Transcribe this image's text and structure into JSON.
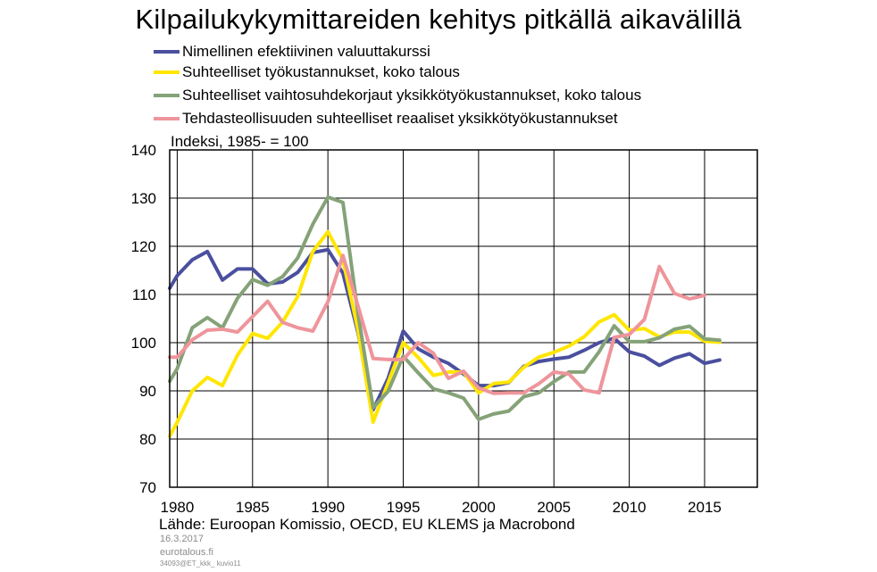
{
  "chart_data": {
    "type": "line",
    "title": "Kilpailukykymittareiden kehitys pitkällä aikavälillä",
    "ylabel": "Indeksi, 1985- = 100",
    "xlabel": "",
    "ylim": [
      70,
      140
    ],
    "xlim": [
      1979.5,
      2018.5
    ],
    "y_ticks": [
      70,
      80,
      90,
      100,
      110,
      120,
      130,
      140
    ],
    "x_ticks": [
      1980,
      1985,
      1990,
      1995,
      2000,
      2005,
      2010,
      2015
    ],
    "grid": true,
    "legend_position": "top-left",
    "series": [
      {
        "name": "Nimellinen efektiivinen valuuttakurssi",
        "color": "#4a4f9e",
        "x": [
          1979.5,
          1980,
          1981,
          1982,
          1983,
          1984,
          1985,
          1986,
          1987,
          1988,
          1989,
          1990,
          1991,
          1992,
          1993,
          1994,
          1995,
          1996,
          1997,
          1998,
          1999,
          2000,
          2001,
          2002,
          2003,
          2004,
          2005,
          2006,
          2007,
          2008,
          2009,
          2010,
          2011,
          2012,
          2013,
          2014,
          2015,
          2016
        ],
        "values": [
          111.3,
          113.9,
          117.2,
          118.9,
          113.0,
          115.3,
          115.3,
          112.2,
          112.6,
          114.6,
          118.7,
          119.3,
          114.4,
          102.1,
          86.1,
          92.6,
          102.4,
          98.7,
          97.0,
          95.7,
          93.5,
          91.1,
          91.1,
          91.7,
          95.1,
          96.1,
          96.6,
          97.0,
          98.4,
          100.0,
          100.9,
          98.1,
          97.2,
          95.3,
          96.8,
          97.7,
          95.7,
          96.4
        ]
      },
      {
        "name": "Suhteelliset työkustannukset, koko talous",
        "color": "#ffe600",
        "x": [
          1979.5,
          1980,
          1981,
          1982,
          1983,
          1984,
          1985,
          1986,
          1987,
          1988,
          1989,
          1990,
          1991,
          1992,
          1993,
          1994,
          1995,
          1996,
          1997,
          1998,
          1999,
          2000,
          2001,
          2002,
          2003,
          2004,
          2005,
          2006,
          2007,
          2008,
          2009,
          2010,
          2011,
          2012,
          2013,
          2014,
          2015,
          2016
        ],
        "values": [
          80.6,
          83.5,
          90.0,
          92.8,
          91.1,
          97.4,
          101.9,
          100.9,
          104.3,
          109.6,
          118.9,
          123.0,
          117.2,
          102.6,
          83.5,
          91.7,
          100.0,
          96.9,
          93.2,
          93.9,
          93.9,
          89.6,
          91.5,
          91.8,
          94.9,
          97.0,
          98.0,
          99.3,
          101.2,
          104.3,
          105.8,
          102.6,
          102.9,
          101.2,
          102.2,
          102.2,
          100.3,
          100.1
        ]
      },
      {
        "name": "Suhteelliset vaihtosuhdekorjaut yksikkötyökustannukset, koko talous",
        "color": "#85a278",
        "x": [
          1979.5,
          1980,
          1981,
          1982,
          1983,
          1984,
          1985,
          1986,
          1987,
          1988,
          1989,
          1990,
          1991,
          1992,
          1993,
          1994,
          1995,
          1996,
          1997,
          1998,
          1999,
          2000,
          2001,
          2002,
          2003,
          2004,
          2005,
          2006,
          2007,
          2008,
          2009,
          2010,
          2011,
          2012,
          2013,
          2014,
          2015,
          2016
        ],
        "values": [
          92.0,
          94.6,
          103.1,
          105.2,
          103.1,
          109.2,
          113.1,
          111.9,
          113.7,
          117.6,
          124.6,
          130.2,
          129.1,
          106.0,
          86.5,
          89.9,
          97.2,
          93.7,
          90.4,
          89.6,
          88.5,
          84.1,
          85.2,
          85.8,
          88.8,
          89.6,
          91.9,
          93.9,
          93.9,
          98.1,
          103.5,
          100.2,
          100.2,
          101.0,
          102.8,
          103.4,
          100.8,
          100.5
        ]
      },
      {
        "name": "Tehdasteollisuuden suhteelliset reaaliset yksikkötyökustannukset",
        "color": "#ee959b",
        "x": [
          1979.5,
          1980,
          1981,
          1982,
          1983,
          1984,
          1985,
          1986,
          1987,
          1988,
          1989,
          1990,
          1991,
          1992,
          1993,
          1994,
          1995,
          1996,
          1997,
          1998,
          1999,
          2000,
          2001,
          2002,
          2003,
          2004,
          2005,
          2006,
          2007,
          2008,
          2009,
          2010,
          2011,
          2012,
          2013,
          2014,
          2015
        ],
        "values": [
          97.0,
          97.0,
          100.6,
          102.6,
          102.8,
          102.2,
          105.4,
          108.6,
          104.2,
          103.1,
          102.4,
          108.5,
          118.1,
          107.6,
          96.7,
          96.5,
          96.5,
          100.0,
          97.8,
          92.6,
          94.1,
          90.6,
          89.5,
          89.6,
          89.6,
          91.5,
          93.9,
          93.5,
          90.2,
          89.6,
          101.1,
          101.7,
          104.8,
          115.8,
          110.2,
          109.1,
          109.8
        ]
      }
    ]
  },
  "source": "Lähde: Euroopan Komissio, OECD, EU KLEMS ja Macrobond",
  "date": "16.3.2017",
  "site": "eurotalous.fi",
  "code": "34093@ET_kkk_ kuvio11"
}
